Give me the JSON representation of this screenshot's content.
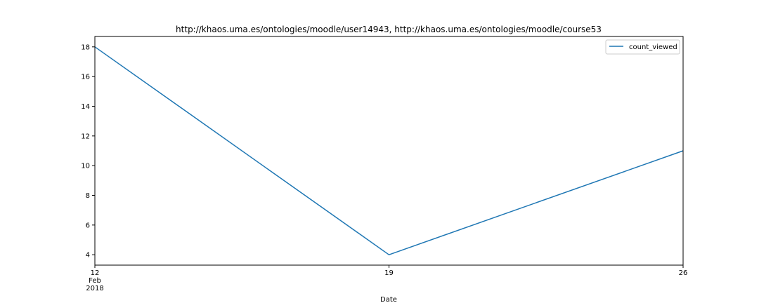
{
  "chart_data": {
    "type": "line",
    "title": "http://khaos.uma.es/ontologies/moodle/user14943, http://khaos.uma.es/ontologies/moodle/course53",
    "xlabel": "Date",
    "ylabel": "",
    "x": [
      "2018-02-12",
      "2018-02-19",
      "2018-02-26"
    ],
    "x_tick_labels": [
      {
        "lines": [
          "12",
          "Feb",
          "2018"
        ]
      },
      {
        "lines": [
          "19"
        ]
      },
      {
        "lines": [
          "26"
        ]
      }
    ],
    "series": [
      {
        "name": "count_viewed",
        "values": [
          18,
          4,
          11
        ],
        "color": "#1f77b4"
      }
    ],
    "yticks": [
      4,
      6,
      8,
      10,
      12,
      14,
      16,
      18
    ],
    "ylim": [
      3.3,
      18.7
    ],
    "grid": false,
    "legend_position": "top-right"
  }
}
